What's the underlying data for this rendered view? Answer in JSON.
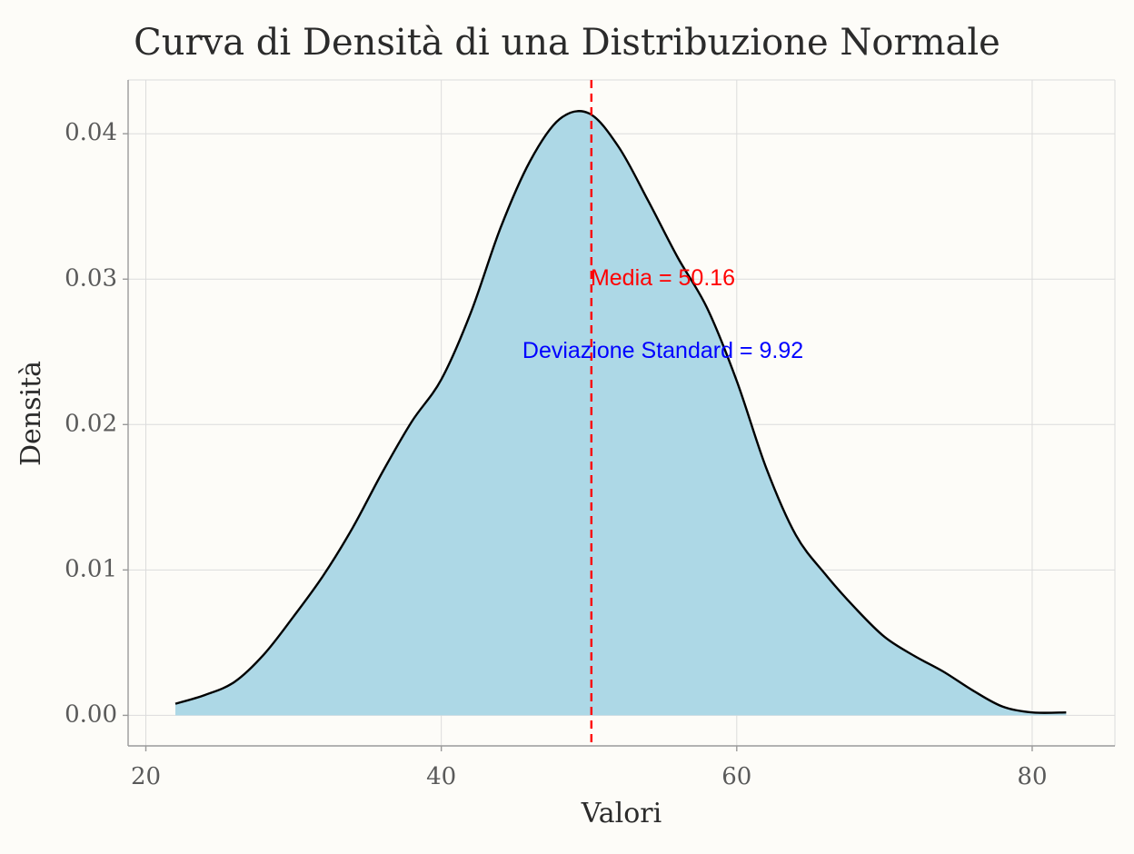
{
  "chart_data": {
    "type": "area",
    "title": "Curva di Densità di una Distribuzione Normale",
    "xlabel": "Valori",
    "ylabel": "Densità",
    "xlim": [
      18.8,
      85.6
    ],
    "ylim": [
      -0.0021,
      0.0437
    ],
    "x_ticks": [
      20,
      40,
      60,
      80
    ],
    "x_tick_labels": [
      "20",
      "40",
      "60",
      "80"
    ],
    "y_ticks": [
      0.0,
      0.01,
      0.02,
      0.03,
      0.04
    ],
    "y_tick_labels": [
      "0.00",
      "0.01",
      "0.02",
      "0.03",
      "0.04"
    ],
    "grid": true,
    "series": [
      {
        "x": [
          22.0,
          24.0,
          26.0,
          28.0,
          30.0,
          32.0,
          34.0,
          36.0,
          38.0,
          40.0,
          42.0,
          44.0,
          46.0,
          48.0,
          50.0,
          52.0,
          54.0,
          56.0,
          58.0,
          60.0,
          62.0,
          64.0,
          66.0,
          68.0,
          70.0,
          72.0,
          74.0,
          76.0,
          78.0,
          80.0,
          82.3
        ],
        "y": [
          0.0008,
          0.0014,
          0.0023,
          0.0042,
          0.0068,
          0.0096,
          0.0129,
          0.0167,
          0.0202,
          0.0231,
          0.0277,
          0.0335,
          0.0381,
          0.041,
          0.0414,
          0.0391,
          0.0354,
          0.0315,
          0.028,
          0.023,
          0.017,
          0.0124,
          0.0097,
          0.0074,
          0.0054,
          0.0041,
          0.003,
          0.0017,
          0.0006,
          0.0002,
          0.0002
        ],
        "fill": "#add8e6",
        "line_color": "#000000"
      }
    ],
    "annotations": [
      {
        "type": "vline",
        "x": 50.16,
        "color": "#ff0000",
        "style": "dashed"
      },
      {
        "type": "text",
        "text": "Media = 50.16",
        "x": 55.0,
        "y": 0.03,
        "color": "#ff0000"
      },
      {
        "type": "text",
        "text": "Deviazione Standard = 9.92",
        "x": 55.0,
        "y": 0.025,
        "color": "#0000ff"
      }
    ],
    "colors": {
      "background": "#fdfcf8",
      "grid": "#dcdcdc",
      "axis": "#9a9a9a"
    }
  }
}
